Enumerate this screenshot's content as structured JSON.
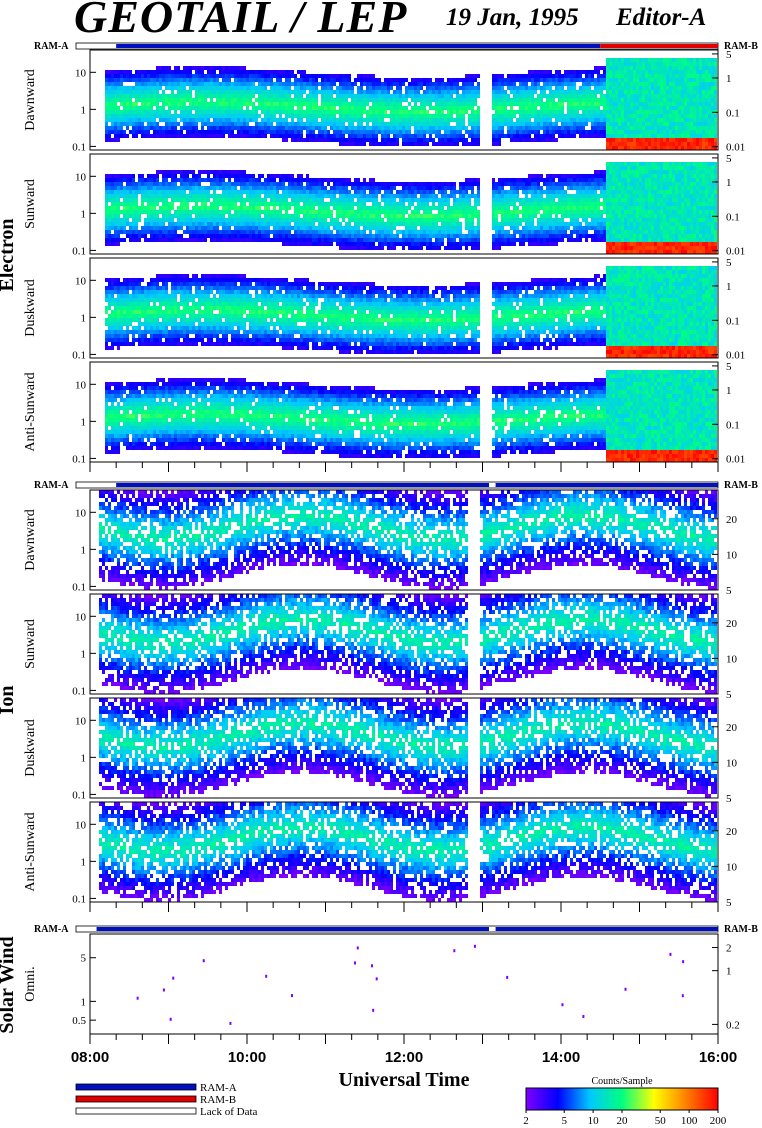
{
  "header": {
    "title": "GEOTAIL / LEP",
    "date": "19 Jan, 1995",
    "editor": "Editor-A"
  },
  "chart_data": {
    "type": "heatmap",
    "xlabel": "Universal Time",
    "x_range": [
      "08:00",
      "16:00"
    ],
    "x_ticks": [
      "08:00",
      "10:00",
      "12:00",
      "14:00",
      "16:00"
    ],
    "groups": [
      {
        "name": "Electron",
        "mode_bar": {
          "left_label": "RAM-A",
          "right_label": "RAM-B",
          "segments": [
            {
              "mode": "Lack of Data",
              "start": "08:00",
              "end": "08:20"
            },
            {
              "mode": "RAM-A",
              "start": "08:20",
              "end": "14:30"
            },
            {
              "mode": "RAM-B",
              "start": "14:30",
              "end": "16:00"
            }
          ]
        },
        "panels": [
          {
            "label": "Dawnward",
            "left_ticks": [
              "10",
              "1",
              "0.1"
            ],
            "right_ticks": [
              "5",
              "1",
              "0.1",
              "0.01"
            ]
          },
          {
            "label": "Sunward",
            "left_ticks": [
              "10",
              "1",
              "0.1"
            ],
            "right_ticks": [
              "5",
              "1",
              "0.1",
              "0.01"
            ]
          },
          {
            "label": "Duskward",
            "left_ticks": [
              "10",
              "1",
              "0.1"
            ],
            "right_ticks": [
              "5",
              "1",
              "0.1",
              "0.01"
            ]
          },
          {
            "label": "Anti-Sunward",
            "left_ticks": [
              "10",
              "1",
              "0.1"
            ],
            "right_ticks": [
              "5",
              "1",
              "0.1",
              "0.01"
            ]
          }
        ],
        "left_log_range": [
          0.08,
          40
        ],
        "right_log_range": [
          0.008,
          6.5
        ],
        "left_ticks_values": [
          10,
          1,
          0.1
        ],
        "right_ticks_values": [
          5,
          1,
          0.1,
          0.01
        ]
      },
      {
        "name": "Ion",
        "mode_bar": {
          "left_label": "RAM-A",
          "right_label": "RAM-B",
          "segments": [
            {
              "mode": "Lack of Data",
              "start": "08:00",
              "end": "08:20"
            },
            {
              "mode": "RAM-A",
              "start": "08:20",
              "end": "13:05"
            },
            {
              "mode": "Lack of Data",
              "start": "13:05",
              "end": "13:10"
            },
            {
              "mode": "RAM-A",
              "start": "13:10",
              "end": "16:00"
            }
          ]
        },
        "panels": [
          {
            "label": "Dawnward",
            "left_ticks": [
              "10",
              "1",
              "0.1"
            ],
            "right_ticks": [
              "20",
              "10",
              "5"
            ]
          },
          {
            "label": "Sunward",
            "left_ticks": [
              "10",
              "1",
              "0.1"
            ],
            "right_ticks": [
              "20",
              "10",
              "5"
            ]
          },
          {
            "label": "Duskward",
            "left_ticks": [
              "10",
              "1",
              "0.1"
            ],
            "right_ticks": [
              "20",
              "10",
              "5"
            ]
          },
          {
            "label": "Anti-Sunward",
            "left_ticks": [
              "10",
              "1",
              "0.1"
            ],
            "right_ticks": [
              "20",
              "10",
              "5"
            ]
          }
        ],
        "left_log_range": [
          0.08,
          40
        ],
        "right_log_range": [
          5,
          35
        ],
        "left_ticks_values": [
          10,
          1,
          0.1
        ],
        "right_ticks_values": [
          20,
          10,
          5
        ]
      },
      {
        "name": "Solar Wind",
        "mode_bar": {
          "left_label": "RAM-A",
          "right_label": "RAM-B",
          "segments": [
            {
              "mode": "Lack of Data",
              "start": "08:00",
              "end": "08:05"
            },
            {
              "mode": "RAM-A",
              "start": "08:05",
              "end": "13:05"
            },
            {
              "mode": "Lack of Data",
              "start": "13:05",
              "end": "13:10"
            },
            {
              "mode": "RAM-A",
              "start": "13:10",
              "end": "16:00"
            }
          ]
        },
        "panels": [
          {
            "label": "Omni.",
            "left_ticks": [
              "5",
              "1",
              "0.5"
            ],
            "right_ticks": [
              "2",
              "1",
              "0.2"
            ]
          }
        ],
        "left_log_range": [
          0.3,
          12
        ],
        "right_log_range": [
          0.15,
          3
        ],
        "left_ticks_values": [
          5,
          1,
          0.5
        ],
        "right_ticks_values": [
          2,
          1,
          0.2
        ]
      }
    ],
    "legend": {
      "items": [
        {
          "label": "RAM-A",
          "color": "#0010c0"
        },
        {
          "label": "RAM-B",
          "color": "#e00000"
        },
        {
          "label": "Lack of Data",
          "color": "#ffffff"
        }
      ]
    },
    "colorbar": {
      "label": "Counts/Sample",
      "scale": "log",
      "range": [
        2,
        200
      ],
      "ticks": [
        "2",
        "5",
        "10",
        "20",
        "50",
        "100",
        "200"
      ],
      "colors": [
        "#8000ff",
        "#0000ff",
        "#00c8ff",
        "#00ff80",
        "#ffff00",
        "#ff8000",
        "#ff0000"
      ]
    }
  }
}
